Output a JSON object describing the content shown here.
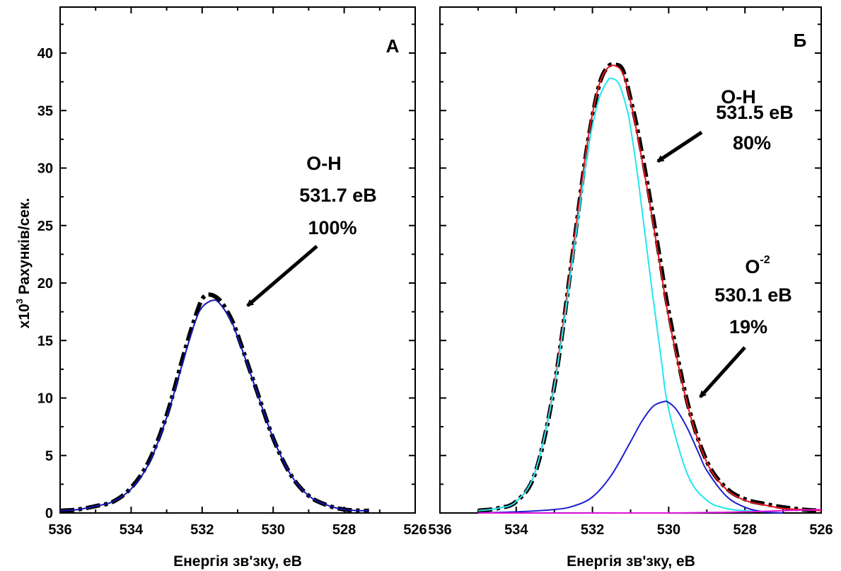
{
  "chart_data": [
    {
      "type": "line",
      "panel_label": "А",
      "xlabel": "Енергія зв'зку, еВ",
      "ylabel_prefix": "x10",
      "ylabel_exp": "3",
      "ylabel_rest": " Рахунків/сек.",
      "xlim": [
        536,
        526
      ],
      "ylim": [
        0,
        44
      ],
      "x_ticks": [
        "536",
        "534",
        "532",
        "530",
        "528",
        "526"
      ],
      "y_ticks": [
        "0",
        "5",
        "10",
        "15",
        "20",
        "25",
        "30",
        "35",
        "40"
      ],
      "x_tick_values": [
        536,
        534,
        532,
        530,
        528,
        526
      ],
      "y_tick_values": [
        0,
        5,
        10,
        15,
        20,
        25,
        30,
        35,
        40
      ],
      "annotations": [
        {
          "lines": [
            "O-H",
            "531.7 eB",
            "100%"
          ],
          "arrow_to": [
            531.0,
            17.7
          ]
        }
      ],
      "series": [
        {
          "style": "measured",
          "color": "#000000",
          "x": [
            536,
            535.5,
            535,
            534.5,
            534,
            533.5,
            533,
            532.5,
            532.2,
            532,
            531.8,
            531.5,
            531.2,
            531,
            530.5,
            530,
            529.5,
            529,
            528.5,
            528,
            527.5,
            527.3
          ],
          "y": [
            0.2,
            0.3,
            0.6,
            1.0,
            2.2,
            4.5,
            8.5,
            14.0,
            17.0,
            18.6,
            19.0,
            18.5,
            17.0,
            15.5,
            11.0,
            6.5,
            3.3,
            1.5,
            0.7,
            0.3,
            0.2,
            0.2
          ]
        },
        {
          "style": "fit",
          "color": "#1414b4",
          "x": [
            536,
            535.5,
            535,
            534.5,
            534,
            533.5,
            533,
            532.5,
            532.2,
            532,
            531.7,
            531.5,
            531.2,
            531,
            530.5,
            530,
            529.5,
            529,
            528.5,
            528,
            527.5,
            527.3
          ],
          "y": [
            0.2,
            0.3,
            0.6,
            1.0,
            2.1,
            4.3,
            8.3,
            13.6,
            16.6,
            17.9,
            18.5,
            18.2,
            16.8,
            15.3,
            10.9,
            6.5,
            3.3,
            1.5,
            0.7,
            0.3,
            0.2,
            0.2
          ]
        }
      ]
    },
    {
      "type": "line",
      "panel_label": "Б",
      "xlabel": "Енергія зв'зку, еВ",
      "xlim": [
        536,
        526
      ],
      "ylim": [
        0,
        44
      ],
      "x_ticks": [
        "536",
        "534",
        "532",
        "530",
        "528",
        "526"
      ],
      "x_tick_values": [
        536,
        534,
        532,
        530,
        528,
        526
      ],
      "y_tick_values": [
        0,
        5,
        10,
        15,
        20,
        25,
        30,
        35,
        40
      ],
      "annotations": [
        {
          "lines": [
            "O-H",
            "531.5 eB",
            "80%"
          ],
          "arrow_to": [
            530.7,
            30.0
          ]
        },
        {
          "lines": [
            "O",
            "530.1 eB",
            "19%"
          ],
          "superscript": "-2",
          "arrow_to": [
            529.6,
            9.7
          ]
        }
      ],
      "series": [
        {
          "style": "measured",
          "color": "#000000",
          "x": [
            535,
            534.5,
            534,
            533.5,
            533,
            532.5,
            532.2,
            532,
            531.8,
            531.6,
            531.4,
            531.2,
            531,
            530.8,
            530.5,
            530.2,
            530,
            529.5,
            529,
            528.5,
            528,
            527.5,
            527,
            526.5,
            526
          ],
          "y": [
            0.2,
            0.4,
            1.0,
            3.5,
            11.0,
            23.0,
            30.5,
            34.5,
            37.5,
            38.8,
            39.0,
            38.5,
            36.0,
            33.0,
            27.5,
            21.5,
            17.5,
            9.5,
            4.5,
            2.2,
            1.2,
            0.8,
            0.5,
            0.3,
            0.2
          ]
        },
        {
          "style": "fit-total",
          "color": "#e8141e",
          "x": [
            535,
            534.5,
            534,
            533.5,
            533,
            532.5,
            532.2,
            532,
            531.8,
            531.6,
            531.4,
            531.2,
            531,
            530.8,
            530.5,
            530.2,
            530,
            529.5,
            529,
            528.5,
            528,
            527.5,
            527,
            526.5,
            526
          ],
          "y": [
            0.2,
            0.4,
            1.0,
            3.6,
            11.2,
            23.2,
            30.7,
            34.7,
            37.5,
            38.7,
            38.9,
            38.2,
            35.8,
            32.5,
            27.0,
            21.0,
            17.0,
            9.3,
            4.4,
            2.1,
            1.1,
            0.7,
            0.4,
            0.3,
            0.2
          ]
        },
        {
          "style": "component",
          "color": "#21e6f0",
          "x": [
            535,
            534.5,
            534,
            533.5,
            533,
            532.5,
            532.2,
            532,
            531.8,
            531.6,
            531.5,
            531.3,
            531.1,
            531,
            530.8,
            530.5,
            530.2,
            530,
            529.5,
            529,
            528.5,
            528,
            527.5
          ],
          "y": [
            0.2,
            0.4,
            1.0,
            3.6,
            11.0,
            22.5,
            29.8,
            33.7,
            36.3,
            37.6,
            37.8,
            37.3,
            35.2,
            33.5,
            29.0,
            21.0,
            13.5,
            9.0,
            3.3,
            1.1,
            0.4,
            0.2,
            0.1
          ]
        },
        {
          "style": "component",
          "color": "#1e1ed2",
          "x": [
            535,
            534,
            533,
            532.5,
            532,
            531.5,
            531,
            530.7,
            530.4,
            530.1,
            530,
            529.8,
            529.5,
            529.2,
            529,
            528.5,
            528,
            527.5,
            527
          ],
          "y": [
            0.0,
            0.1,
            0.3,
            0.6,
            1.4,
            3.3,
            6.2,
            8.0,
            9.3,
            9.7,
            9.6,
            9.0,
            7.3,
            5.1,
            3.7,
            1.5,
            0.5,
            0.1,
            0.0
          ]
        },
        {
          "style": "component",
          "color": "#e014e0",
          "x": [
            535,
            530,
            528,
            527,
            526
          ],
          "y": [
            0.0,
            0.0,
            0.1,
            0.2,
            0.3
          ]
        }
      ]
    }
  ]
}
